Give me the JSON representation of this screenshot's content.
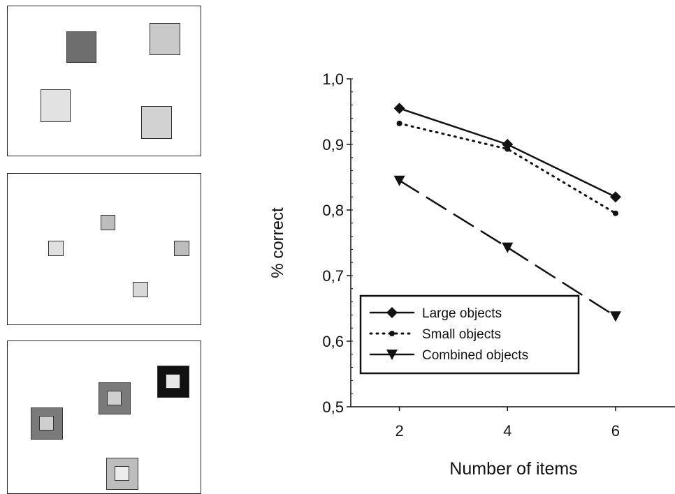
{
  "palette": {
    "dark": "#6e6e6e",
    "mid": "#bdbdbd",
    "light": "#d8d8d8",
    "black": "#111111",
    "background": "#ffffff"
  },
  "chart_data": {
    "type": "line",
    "xlabel": "Number of items",
    "ylabel": "% correct",
    "x": [
      2,
      4,
      6
    ],
    "x_ticks": [
      "2",
      "4",
      "6"
    ],
    "ylim": [
      0.5,
      1.0
    ],
    "y_ticks": [
      "0,5",
      "0,6",
      "0,7",
      "0,8",
      "0,9",
      "1,0"
    ],
    "grid": false,
    "legend_position": "bottom-left",
    "series": [
      {
        "name": "Large objects",
        "values": [
          0.955,
          0.9,
          0.82
        ],
        "style": "solid",
        "marker": "diamond",
        "color": "#111111"
      },
      {
        "name": "Small objects",
        "values": [
          0.932,
          0.893,
          0.795
        ],
        "style": "dotted",
        "marker": "circle",
        "color": "#111111"
      },
      {
        "name": "Combined objects",
        "values": [
          0.845,
          0.743,
          0.638
        ],
        "style": "dashed",
        "marker": "triangle-down",
        "color": "#111111"
      }
    ]
  }
}
